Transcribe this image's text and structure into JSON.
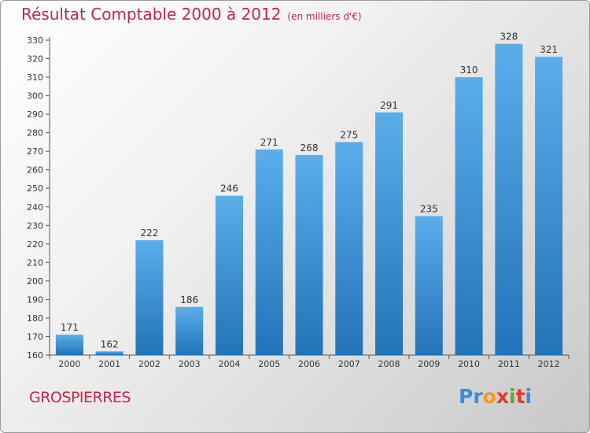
{
  "title": "Résultat Comptable 2000 à 2012",
  "unit_label": "(en milliers d'€)",
  "town": "GROSPIERRES",
  "logo": {
    "letters": [
      "P",
      "r",
      "o",
      "x",
      "i",
      "t",
      "i"
    ],
    "colors": [
      "#3a8fd6",
      "#3a8fd6",
      "#f29b1d",
      "#e23a2b",
      "#5aa832",
      "#e23a2b",
      "#3a8fd6"
    ]
  },
  "colors": {
    "accent": "#c0284b",
    "bar_light": "#5aaeea",
    "bar_dark": "#2273b9"
  },
  "chart_data": {
    "type": "bar",
    "categories": [
      "2000",
      "2001",
      "2002",
      "2003",
      "2004",
      "2005",
      "2006",
      "2007",
      "2008",
      "2009",
      "2010",
      "2011",
      "2012"
    ],
    "values": [
      171,
      162,
      222,
      186,
      246,
      271,
      268,
      275,
      291,
      235,
      310,
      328,
      321
    ],
    "title": "Résultat Comptable 2000 à 2012",
    "xlabel": "",
    "ylabel": "",
    "ylim": [
      160,
      330
    ],
    "yticks": [
      160,
      170,
      180,
      190,
      200,
      210,
      220,
      230,
      240,
      250,
      260,
      270,
      280,
      290,
      300,
      310,
      320,
      330
    ],
    "grid": false,
    "data_labels": true
  }
}
